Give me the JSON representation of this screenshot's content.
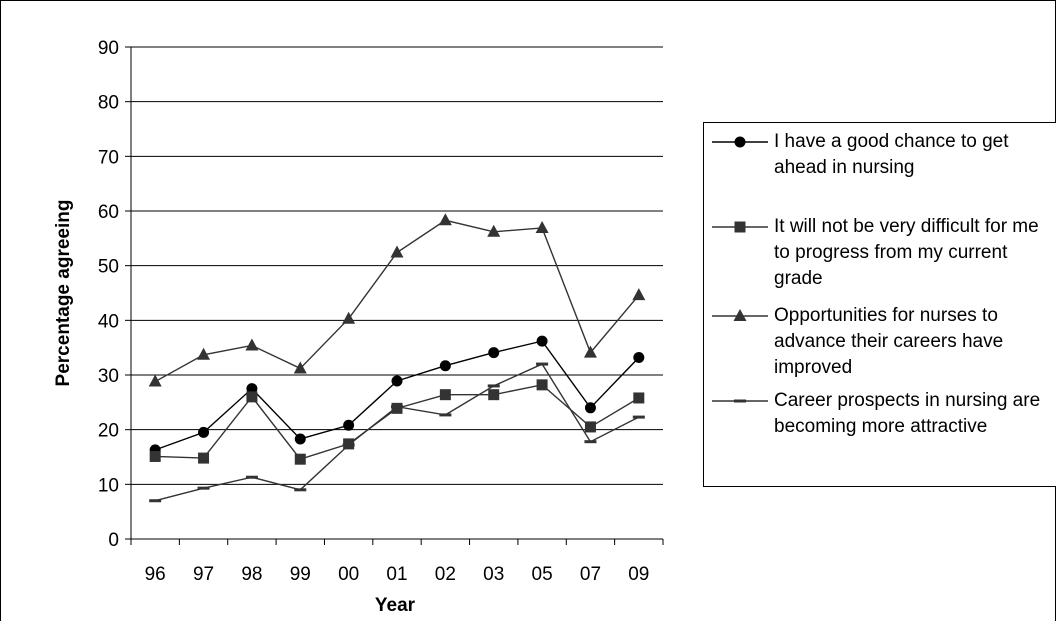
{
  "chart_data": {
    "type": "line",
    "xlabel": "Year",
    "ylabel": "Percentage agreeing",
    "ylim": [
      0,
      90
    ],
    "yticks": [
      "0",
      "10",
      "20",
      "30",
      "40",
      "50",
      "60",
      "70",
      "80",
      "90"
    ],
    "categories": [
      "96",
      "97",
      "98",
      "99",
      "00",
      "01",
      "02",
      "03",
      "05",
      "07",
      "09"
    ],
    "grid": "horizontal",
    "legend_position": "right",
    "series": [
      {
        "name": "I have a good chance to get ahead in nursing",
        "marker": "circle",
        "color": "#000000",
        "values": [
          16.3,
          19.5,
          27.5,
          18.3,
          20.8,
          28.9,
          31.7,
          34.1,
          36.2,
          24.0,
          33.2
        ]
      },
      {
        "name": "It will not be very difficult for me to progress from my current grade",
        "marker": "square",
        "color": "#333333",
        "values": [
          15.1,
          14.8,
          26.0,
          14.6,
          17.4,
          23.9,
          26.4,
          26.4,
          28.2,
          20.5,
          25.8
        ]
      },
      {
        "name": "Opportunities for nurses to advance their careers have improved",
        "marker": "triangle",
        "color": "#333333",
        "values": [
          28.8,
          33.7,
          35.4,
          31.2,
          40.3,
          52.4,
          58.3,
          56.2,
          56.9,
          34.1,
          44.6
        ]
      },
      {
        "name": "Career prospects in nursing are becoming more attractive",
        "marker": "dash",
        "color": "#333333",
        "values": [
          7.0,
          9.3,
          11.3,
          9.0,
          17.2,
          24.2,
          22.7,
          28.0,
          32.0,
          17.8,
          22.3
        ]
      }
    ]
  }
}
